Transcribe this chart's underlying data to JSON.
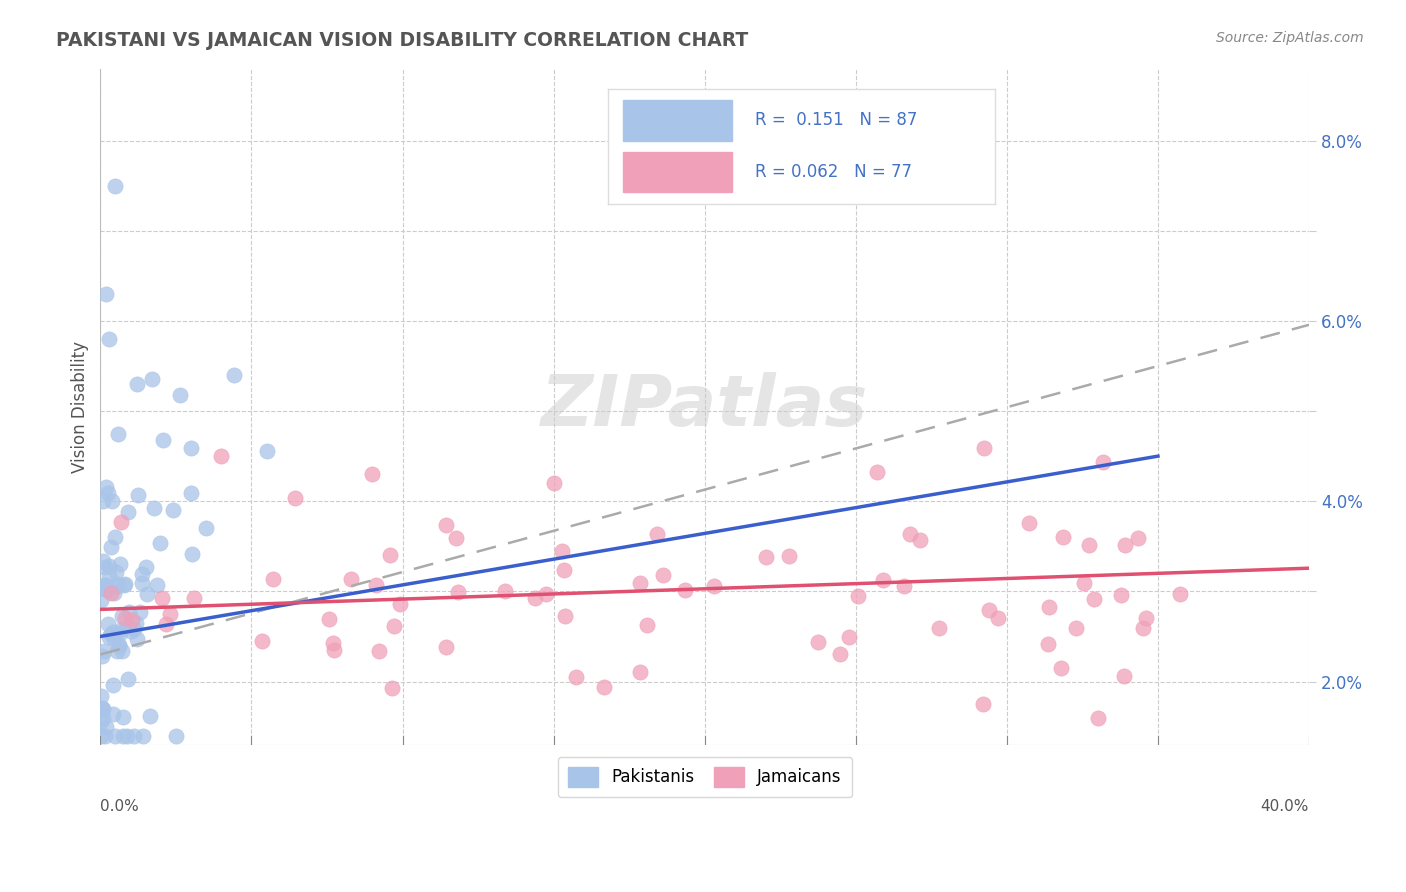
{
  "title": "PAKISTANI VS JAMAICAN VISION DISABILITY CORRELATION CHART",
  "source": "Source: ZipAtlas.com",
  "ylabel": "Vision Disability",
  "xmin": 0.0,
  "xmax": 0.4,
  "ymin": 0.013,
  "ymax": 0.088,
  "pakistani_R": 0.151,
  "pakistani_N": 87,
  "jamaican_R": 0.062,
  "jamaican_N": 77,
  "pakistani_color": "#a8c4e8",
  "jamaican_color": "#f0a0b8",
  "pakistani_line_color": "#3a5fcd",
  "jamaican_line_color": "#e05070",
  "trend_extend_color": "#aaaaaa",
  "background_color": "#ffffff",
  "grid_color": "#cccccc",
  "title_color": "#555555",
  "ytick_color": "#4472c4",
  "watermark": "ZIPatlas",
  "ytick_vals": [
    0.02,
    0.03,
    0.04,
    0.05,
    0.06,
    0.07,
    0.08
  ],
  "ytick_labels": [
    "2.0%",
    "",
    "4.0%",
    "",
    "6.0%",
    "",
    "8.0%"
  ]
}
